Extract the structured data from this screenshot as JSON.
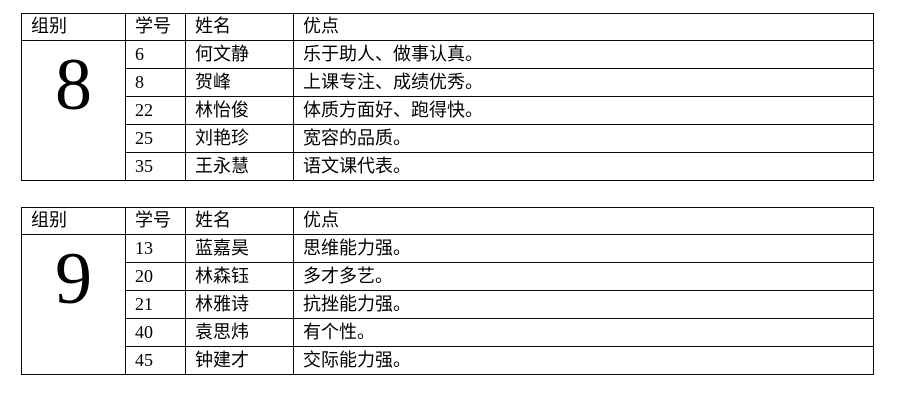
{
  "page": {
    "background_color": "#ffffff",
    "text_color": "#000000",
    "border_color": "#0a0a0a"
  },
  "tables": [
    {
      "group_label": "8",
      "headers": [
        "组别",
        "学号",
        "姓名",
        "优点"
      ],
      "rows": [
        {
          "student_id": "6",
          "name": "何文静",
          "name_bold": false,
          "merit": "乐于助人、做事认真。"
        },
        {
          "student_id": "8",
          "name": "贺峰",
          "name_bold": true,
          "merit": "上课专注、成绩优秀。"
        },
        {
          "student_id": "22",
          "name": "林怡俊",
          "name_bold": false,
          "merit": "体质方面好、跑得快。"
        },
        {
          "student_id": "25",
          "name": "刘艳珍",
          "name_bold": false,
          "merit": "宽容的品质。"
        },
        {
          "student_id": "35",
          "name": "王永慧",
          "name_bold": false,
          "merit": "语文课代表。"
        }
      ]
    },
    {
      "group_label": "9",
      "headers": [
        "组别",
        "学号",
        "姓名",
        "优点"
      ],
      "rows": [
        {
          "student_id": "13",
          "name": "蓝嘉昊",
          "name_bold": false,
          "merit": "思维能力强。"
        },
        {
          "student_id": "20",
          "name": "林森钰",
          "name_bold": false,
          "merit": "多才多艺。"
        },
        {
          "student_id": "21",
          "name": "林雅诗",
          "name_bold": false,
          "merit": "抗挫能力强。"
        },
        {
          "student_id": "40",
          "name": "袁思炜",
          "name_bold": false,
          "merit": "有个性。"
        },
        {
          "student_id": "45",
          "name": "钟建才",
          "name_bold": true,
          "merit": "交际能力强。"
        }
      ]
    }
  ]
}
